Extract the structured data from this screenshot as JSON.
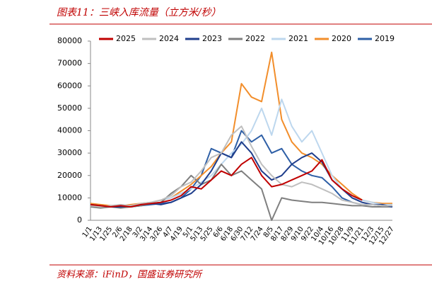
{
  "chart_data": {
    "type": "line",
    "title": "图表11：三峡入库流量（立方米/秒）",
    "source": "资料来源：iFinD，国盛证券研究所",
    "categories": [
      "1/1",
      "1/13",
      "1/25",
      "2/6",
      "2/18",
      "3/2",
      "3/14",
      "3/26",
      "4/7",
      "4/19",
      "5/1",
      "5/13",
      "5/25",
      "6/6",
      "6/18",
      "6/30",
      "7/12",
      "7/24",
      "8/5",
      "8/17",
      "8/29",
      "9/10",
      "9/22",
      "10/4",
      "10/16",
      "10/28",
      "11/9",
      "11/21",
      "12/3",
      "12/15",
      "12/27"
    ],
    "ylim": [
      0,
      80000
    ],
    "yticks": [
      0,
      10000,
      20000,
      30000,
      40000,
      50000,
      60000,
      70000,
      80000
    ],
    "legend": "top",
    "series": [
      {
        "name": "2025",
        "color": "#c00000",
        "values": [
          7000,
          6500,
          6000,
          6500,
          6000,
          7000,
          7500,
          8000,
          9000,
          11000,
          15000,
          14000,
          18000,
          22000,
          20000,
          25000,
          28000,
          20000,
          15000,
          16000,
          18000,
          20000,
          22000,
          27000,
          18000,
          14000,
          11000,
          9000,
          null,
          null,
          null
        ]
      },
      {
        "name": "2024",
        "color": "#bfbfbf",
        "values": [
          6500,
          6000,
          6500,
          7000,
          6500,
          7500,
          8000,
          9000,
          11000,
          15000,
          17000,
          22000,
          28000,
          30000,
          38000,
          42000,
          33000,
          25000,
          20000,
          16000,
          15000,
          17000,
          16000,
          14000,
          12000,
          9000,
          8000,
          7000,
          7000,
          6500,
          6500
        ]
      },
      {
        "name": "2023",
        "color": "#1f3e8c",
        "values": [
          7000,
          6500,
          6000,
          6000,
          6500,
          7000,
          7500,
          7000,
          8000,
          10000,
          12000,
          16000,
          22000,
          30000,
          28000,
          35000,
          30000,
          22000,
          18000,
          20000,
          25000,
          28000,
          30000,
          26000,
          18000,
          14000,
          10000,
          8000,
          7000,
          7000,
          6000
        ]
      },
      {
        "name": "2022",
        "color": "#7f7f7f",
        "values": [
          6000,
          5500,
          6000,
          5500,
          6000,
          6500,
          7500,
          8000,
          12000,
          15000,
          20000,
          16000,
          18000,
          25000,
          20000,
          22000,
          18000,
          14000,
          0,
          10000,
          9000,
          8500,
          8000,
          8000,
          7500,
          7000,
          6500,
          6500,
          6000,
          6000,
          6000
        ]
      },
      {
        "name": "2021",
        "color": "#bdd7ee",
        "values": [
          6500,
          6000,
          6000,
          6500,
          6500,
          7000,
          8000,
          9000,
          10000,
          12000,
          14000,
          17000,
          20000,
          25000,
          30000,
          34000,
          40000,
          50000,
          38000,
          54000,
          42000,
          35000,
          40000,
          30000,
          20000,
          14000,
          10000,
          9000,
          8000,
          7000,
          7000
        ]
      },
      {
        "name": "2020",
        "color": "#f28e2b",
        "values": [
          7500,
          7000,
          6500,
          6500,
          7000,
          7500,
          8000,
          9000,
          10000,
          13000,
          16000,
          20000,
          24000,
          30000,
          35000,
          61000,
          55000,
          53000,
          75000,
          45000,
          35000,
          30000,
          28000,
          25000,
          20000,
          16000,
          12000,
          9000,
          8000,
          7500,
          7500
        ]
      },
      {
        "name": "2019",
        "color": "#2e5fa6",
        "values": [
          7000,
          6500,
          6500,
          6000,
          6000,
          6500,
          7000,
          7500,
          8000,
          10000,
          14000,
          20000,
          32000,
          30000,
          28000,
          40000,
          35000,
          38000,
          30000,
          32000,
          25000,
          22000,
          20000,
          19000,
          15000,
          10000,
          8000,
          7000,
          7000,
          6500,
          6000
        ]
      }
    ]
  }
}
